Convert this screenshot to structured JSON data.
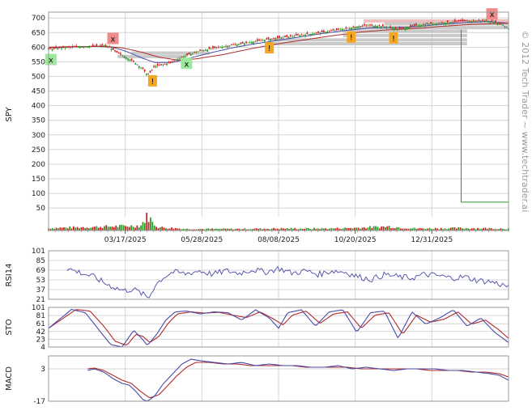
{
  "watermark": "© 2012 Tech Trader ~ www.techtrader.ai",
  "colors": {
    "up": "#2e9a2e",
    "down": "#cc2222",
    "indicator": "#4a4aa8",
    "signal": "#b02a2a",
    "grid": "#d4d4d4",
    "buy_marker": "#9ee89e",
    "sell_marker": "#f08a8a",
    "alert_marker": "#f5a623",
    "sr_band": "#b8b8b8",
    "resistance_band": "#e8a8a8"
  },
  "chart_data": [
    {
      "name": "price",
      "type": "candlestick",
      "ylabel": "SPY",
      "ylim": [
        20,
        720
      ],
      "yticks": [
        50,
        100,
        150,
        200,
        250,
        300,
        350,
        400,
        450,
        500,
        550,
        600,
        650,
        700
      ],
      "xticks": [
        "03/17/2025",
        "05/28/2025",
        "08/08/2025",
        "10/20/2025",
        "12/31/2025"
      ],
      "grid": true,
      "close_path": [
        [
          0,
          592
        ],
        [
          0.02,
          597
        ],
        [
          0.05,
          600
        ],
        [
          0.08,
          603
        ],
        [
          0.1,
          604
        ],
        [
          0.12,
          606
        ],
        [
          0.135,
          598
        ],
        [
          0.145,
          585
        ],
        [
          0.16,
          572
        ],
        [
          0.175,
          560
        ],
        [
          0.19,
          545
        ],
        [
          0.205,
          525
        ],
        [
          0.215,
          505
        ],
        [
          0.222,
          515
        ],
        [
          0.23,
          535
        ],
        [
          0.25,
          540
        ],
        [
          0.27,
          552
        ],
        [
          0.29,
          566
        ],
        [
          0.31,
          578
        ],
        [
          0.33,
          588
        ],
        [
          0.36,
          597
        ],
        [
          0.39,
          605
        ],
        [
          0.42,
          612
        ],
        [
          0.45,
          620
        ],
        [
          0.48,
          628
        ],
        [
          0.51,
          634
        ],
        [
          0.54,
          640
        ],
        [
          0.57,
          646
        ],
        [
          0.6,
          652
        ],
        [
          0.63,
          660
        ],
        [
          0.66,
          667
        ],
        [
          0.69,
          675
        ],
        [
          0.72,
          673
        ],
        [
          0.74,
          668
        ],
        [
          0.76,
          662
        ],
        [
          0.78,
          667
        ],
        [
          0.8,
          674
        ],
        [
          0.83,
          680
        ],
        [
          0.86,
          684
        ],
        [
          0.89,
          688
        ],
        [
          0.92,
          690
        ],
        [
          0.95,
          692
        ],
        [
          0.97,
          686
        ],
        [
          0.985,
          678
        ],
        [
          1.0,
          665
        ]
      ],
      "moving_averages": [
        {
          "color": "#4a4aa8",
          "path": [
            [
              0,
              598
            ],
            [
              0.05,
              601
            ],
            [
              0.1,
              603
            ],
            [
              0.14,
              600
            ],
            [
              0.17,
              585
            ],
            [
              0.2,
              565
            ],
            [
              0.23,
              548
            ],
            [
              0.27,
              548
            ],
            [
              0.3,
              560
            ],
            [
              0.35,
              580
            ],
            [
              0.4,
              598
            ],
            [
              0.45,
              612
            ],
            [
              0.5,
              624
            ],
            [
              0.55,
              636
            ],
            [
              0.6,
              648
            ],
            [
              0.65,
              658
            ],
            [
              0.7,
              666
            ],
            [
              0.75,
              667
            ],
            [
              0.8,
              670
            ],
            [
              0.85,
              678
            ],
            [
              0.9,
              684
            ],
            [
              0.95,
              688
            ],
            [
              1.0,
              682
            ]
          ]
        },
        {
          "color": "#b02a2a",
          "path": [
            [
              0,
              600
            ],
            [
              0.06,
              602
            ],
            [
              0.12,
              603
            ],
            [
              0.16,
              598
            ],
            [
              0.2,
              584
            ],
            [
              0.24,
              566
            ],
            [
              0.28,
              556
            ],
            [
              0.32,
              560
            ],
            [
              0.38,
              575
            ],
            [
              0.44,
              595
            ],
            [
              0.5,
              612
            ],
            [
              0.56,
              626
            ],
            [
              0.62,
              640
            ],
            [
              0.68,
              652
            ],
            [
              0.74,
              660
            ],
            [
              0.8,
              664
            ],
            [
              0.86,
              672
            ],
            [
              0.92,
              678
            ],
            [
              1.0,
              682
            ]
          ]
        }
      ],
      "sr_bands": [
        {
          "y": 690,
          "x_from": 0.685,
          "x_to": 1.0,
          "tone": "resistance"
        },
        {
          "y": 680,
          "x_from": 0.73,
          "x_to": 1.0
        },
        {
          "y": 667,
          "x_from": 0.66,
          "x_to": 1.0
        },
        {
          "y": 655,
          "x_from": 0.64,
          "x_to": 0.91
        },
        {
          "y": 640,
          "x_from": 0.64,
          "x_to": 0.91
        },
        {
          "y": 625,
          "x_from": 0.48,
          "x_to": 0.91
        },
        {
          "y": 612,
          "x_from": 0.48,
          "x_to": 0.91
        },
        {
          "y": 580,
          "x_from": 0.18,
          "x_to": 0.35
        },
        {
          "y": 568,
          "x_from": 0.15,
          "x_to": 0.3
        }
      ],
      "long_line": [
        [
          0.897,
          660
        ],
        [
          0.897,
          70
        ],
        [
          1.0,
          70
        ]
      ],
      "markers": [
        {
          "x": 0.005,
          "y": 558,
          "type": "buy",
          "label": "x"
        },
        {
          "x": 0.14,
          "y": 630,
          "type": "sell",
          "label": "x"
        },
        {
          "x": 0.226,
          "y": 485,
          "type": "alert",
          "label": "!"
        },
        {
          "x": 0.3,
          "y": 545,
          "type": "buy",
          "label": "x"
        },
        {
          "x": 0.48,
          "y": 598,
          "type": "alert",
          "label": "!"
        },
        {
          "x": 0.658,
          "y": 635,
          "type": "alert",
          "label": "!"
        },
        {
          "x": 0.75,
          "y": 632,
          "type": "alert",
          "label": "!"
        },
        {
          "x": 0.964,
          "y": 714,
          "type": "sell",
          "label": "x"
        }
      ],
      "volume_profile": [
        [
          0,
          3
        ],
        [
          0.2,
          6
        ],
        [
          0.21,
          14
        ],
        [
          0.215,
          18
        ],
        [
          0.22,
          16
        ],
        [
          0.225,
          10
        ],
        [
          0.24,
          4
        ],
        [
          0.3,
          2
        ],
        [
          0.4,
          2
        ],
        [
          0.5,
          2.5
        ],
        [
          0.6,
          2.5
        ],
        [
          0.65,
          3
        ],
        [
          0.7,
          4
        ],
        [
          0.74,
          5
        ],
        [
          0.77,
          3.5
        ],
        [
          0.8,
          2.5
        ],
        [
          0.9,
          3
        ],
        [
          1.0,
          2.5
        ]
      ]
    },
    {
      "name": "RSI14",
      "type": "line",
      "ylabel": "RSI14",
      "ylim": [
        21,
        101
      ],
      "yticks": [
        21,
        37,
        53,
        69,
        85,
        101
      ],
      "start": 0.04,
      "path": [
        [
          0,
          72
        ],
        [
          0.03,
          65
        ],
        [
          0.06,
          58
        ],
        [
          0.09,
          46
        ],
        [
          0.11,
          40
        ],
        [
          0.13,
          35
        ],
        [
          0.15,
          38
        ],
        [
          0.17,
          30
        ],
        [
          0.185,
          23
        ],
        [
          0.2,
          45
        ],
        [
          0.22,
          58
        ],
        [
          0.24,
          66
        ],
        [
          0.27,
          63
        ],
        [
          0.3,
          68
        ],
        [
          0.33,
          62
        ],
        [
          0.36,
          68
        ],
        [
          0.39,
          64
        ],
        [
          0.42,
          70
        ],
        [
          0.45,
          66
        ],
        [
          0.48,
          72
        ],
        [
          0.51,
          64
        ],
        [
          0.54,
          68
        ],
        [
          0.57,
          62
        ],
        [
          0.6,
          68
        ],
        [
          0.63,
          66
        ],
        [
          0.66,
          58
        ],
        [
          0.69,
          54
        ],
        [
          0.72,
          62
        ],
        [
          0.75,
          58
        ],
        [
          0.78,
          56
        ],
        [
          0.81,
          62
        ],
        [
          0.84,
          60
        ],
        [
          0.87,
          56
        ],
        [
          0.9,
          58
        ],
        [
          0.93,
          52
        ],
        [
          0.96,
          50
        ],
        [
          1.0,
          42
        ]
      ]
    },
    {
      "name": "STO",
      "type": "line",
      "ylabel": "STO",
      "ylim": [
        4,
        101
      ],
      "yticks": [
        4,
        23,
        42,
        61,
        81,
        101
      ],
      "pre": [
        [
          0,
          50
        ],
        [
          0.06,
          50
        ]
      ],
      "k_path": [
        [
          0,
          50
        ],
        [
          0.05,
          96
        ],
        [
          0.08,
          88
        ],
        [
          0.11,
          45
        ],
        [
          0.135,
          10
        ],
        [
          0.16,
          4
        ],
        [
          0.185,
          45
        ],
        [
          0.2,
          28
        ],
        [
          0.215,
          8
        ],
        [
          0.235,
          35
        ],
        [
          0.255,
          70
        ],
        [
          0.275,
          90
        ],
        [
          0.3,
          92
        ],
        [
          0.33,
          85
        ],
        [
          0.36,
          90
        ],
        [
          0.39,
          88
        ],
        [
          0.42,
          70
        ],
        [
          0.45,
          95
        ],
        [
          0.48,
          75
        ],
        [
          0.5,
          50
        ],
        [
          0.52,
          88
        ],
        [
          0.55,
          95
        ],
        [
          0.58,
          55
        ],
        [
          0.61,
          90
        ],
        [
          0.64,
          95
        ],
        [
          0.67,
          40
        ],
        [
          0.7,
          88
        ],
        [
          0.73,
          92
        ],
        [
          0.76,
          25
        ],
        [
          0.79,
          90
        ],
        [
          0.82,
          60
        ],
        [
          0.85,
          75
        ],
        [
          0.88,
          95
        ],
        [
          0.91,
          55
        ],
        [
          0.94,
          75
        ],
        [
          0.97,
          40
        ],
        [
          1.0,
          15
        ]
      ],
      "d_path": [
        [
          0,
          50
        ],
        [
          0.06,
          96
        ],
        [
          0.09,
          92
        ],
        [
          0.12,
          55
        ],
        [
          0.145,
          18
        ],
        [
          0.17,
          8
        ],
        [
          0.19,
          35
        ],
        [
          0.205,
          30
        ],
        [
          0.22,
          15
        ],
        [
          0.24,
          30
        ],
        [
          0.26,
          62
        ],
        [
          0.28,
          85
        ],
        [
          0.31,
          90
        ],
        [
          0.34,
          87
        ],
        [
          0.37,
          89
        ],
        [
          0.4,
          82
        ],
        [
          0.43,
          76
        ],
        [
          0.46,
          90
        ],
        [
          0.49,
          72
        ],
        [
          0.51,
          58
        ],
        [
          0.53,
          82
        ],
        [
          0.56,
          92
        ],
        [
          0.59,
          62
        ],
        [
          0.62,
          85
        ],
        [
          0.65,
          90
        ],
        [
          0.68,
          50
        ],
        [
          0.71,
          82
        ],
        [
          0.74,
          88
        ],
        [
          0.77,
          35
        ],
        [
          0.8,
          82
        ],
        [
          0.83,
          65
        ],
        [
          0.86,
          72
        ],
        [
          0.89,
          90
        ],
        [
          0.92,
          60
        ],
        [
          0.95,
          70
        ],
        [
          0.98,
          45
        ],
        [
          1.0,
          25
        ]
      ]
    },
    {
      "name": "MACD",
      "type": "line",
      "ylabel": "MACD",
      "ylim": [
        -17,
        11
      ],
      "yticks": [
        -17,
        3
      ],
      "macd_path": [
        [
          0.085,
          2
        ],
        [
          0.1,
          3
        ],
        [
          0.12,
          1
        ],
        [
          0.14,
          -3
        ],
        [
          0.16,
          -6
        ],
        [
          0.175,
          -7
        ],
        [
          0.19,
          -11
        ],
        [
          0.205,
          -16
        ],
        [
          0.215,
          -17
        ],
        [
          0.23,
          -14
        ],
        [
          0.25,
          -6
        ],
        [
          0.27,
          0
        ],
        [
          0.29,
          6
        ],
        [
          0.31,
          9
        ],
        [
          0.33,
          8
        ],
        [
          0.36,
          7
        ],
        [
          0.39,
          6
        ],
        [
          0.42,
          7
        ],
        [
          0.45,
          5
        ],
        [
          0.48,
          6
        ],
        [
          0.51,
          5
        ],
        [
          0.54,
          5
        ],
        [
          0.57,
          4
        ],
        [
          0.6,
          4
        ],
        [
          0.63,
          5
        ],
        [
          0.66,
          3
        ],
        [
          0.69,
          4
        ],
        [
          0.72,
          3
        ],
        [
          0.75,
          2
        ],
        [
          0.78,
          3
        ],
        [
          0.81,
          3
        ],
        [
          0.84,
          3
        ],
        [
          0.87,
          2
        ],
        [
          0.9,
          2
        ],
        [
          0.93,
          1
        ],
        [
          0.96,
          0
        ],
        [
          0.98,
          -1
        ],
        [
          1.0,
          -4
        ]
      ],
      "signal_path": [
        [
          0.085,
          3
        ],
        [
          0.1,
          3.5
        ],
        [
          0.12,
          2
        ],
        [
          0.14,
          -1
        ],
        [
          0.16,
          -4
        ],
        [
          0.18,
          -6
        ],
        [
          0.2,
          -11
        ],
        [
          0.22,
          -15
        ],
        [
          0.24,
          -13
        ],
        [
          0.26,
          -7
        ],
        [
          0.28,
          -1
        ],
        [
          0.3,
          4
        ],
        [
          0.32,
          7
        ],
        [
          0.35,
          7
        ],
        [
          0.38,
          6
        ],
        [
          0.41,
          6
        ],
        [
          0.44,
          5
        ],
        [
          0.47,
          5
        ],
        [
          0.5,
          5
        ],
        [
          0.53,
          5
        ],
        [
          0.56,
          4
        ],
        [
          0.59,
          4
        ],
        [
          0.62,
          4
        ],
        [
          0.65,
          4
        ],
        [
          0.68,
          3
        ],
        [
          0.71,
          3
        ],
        [
          0.74,
          3
        ],
        [
          0.77,
          3
        ],
        [
          0.8,
          3
        ],
        [
          0.83,
          2
        ],
        [
          0.86,
          2
        ],
        [
          0.89,
          2
        ],
        [
          0.92,
          1
        ],
        [
          0.95,
          1
        ],
        [
          0.98,
          0
        ],
        [
          1.0,
          -2
        ]
      ]
    }
  ]
}
